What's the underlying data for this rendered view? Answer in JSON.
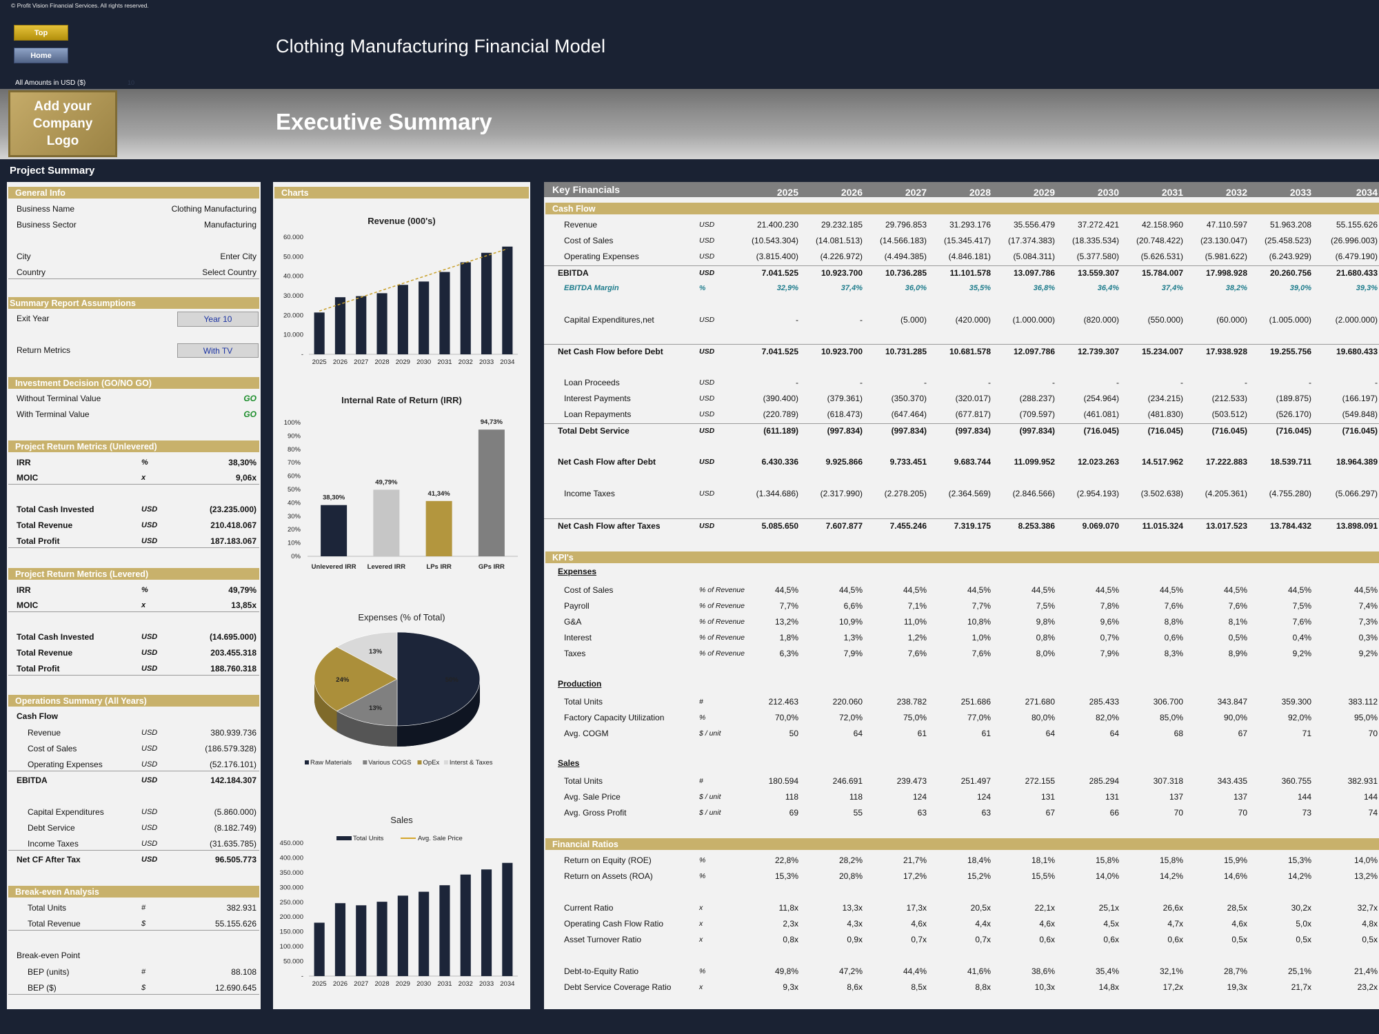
{
  "header": {
    "copyright": "© Profit Vision Financial Services. All rights reserved.",
    "top_btn": "Top",
    "home_btn": "Home",
    "app_title": "Clothing Manufacturing Financial Model",
    "amounts": "All Amounts in  USD ($)",
    "amounts_dim": "10",
    "logo": "Add your Company Logo",
    "section_title": "Executive Summary",
    "project_summary": "Project Summary"
  },
  "left": {
    "general": {
      "title": "General Info",
      "rows": [
        {
          "l": "Business Name",
          "v": "Clothing Manufacturing"
        },
        {
          "l": "Business Sector",
          "v": "Manufacturing"
        },
        {
          "l": "City",
          "v": "Enter City"
        },
        {
          "l": "Country",
          "v": "Select Country"
        }
      ]
    },
    "assumptions": {
      "title": "Summary  Report Assumptions",
      "exit_label": "Exit Year",
      "exit_value": "Year 10",
      "ret_label": "Return Metrics",
      "ret_value": "With TV"
    },
    "decision": {
      "title": "Investment Decision (GO/NO GO)",
      "rows": [
        {
          "l": "Without Terminal Value",
          "v": "GO"
        },
        {
          "l": "With Terminal Value",
          "v": "GO"
        }
      ]
    },
    "unlevered": {
      "title": "Project Return Metrics (Unlevered)",
      "rows": [
        {
          "l": "IRR",
          "u": "%",
          "v": "38,30%"
        },
        {
          "l": "MOIC",
          "u": "x",
          "v": "9,06x"
        },
        {
          "l": "Total Cash Invested",
          "u": "USD",
          "v": "(23.235.000)"
        },
        {
          "l": "Total Revenue",
          "u": "USD",
          "v": "210.418.067"
        },
        {
          "l": "Total Profit",
          "u": "USD",
          "v": "187.183.067"
        }
      ]
    },
    "levered": {
      "title": "Project Return Metrics (Levered)",
      "rows": [
        {
          "l": "IRR",
          "u": "%",
          "v": "49,79%"
        },
        {
          "l": "MOIC",
          "u": "x",
          "v": "13,85x"
        },
        {
          "l": "Total Cash Invested",
          "u": "USD",
          "v": "(14.695.000)"
        },
        {
          "l": "Total Revenue",
          "u": "USD",
          "v": "203.455.318"
        },
        {
          "l": "Total Profit",
          "u": "USD",
          "v": "188.760.318"
        }
      ]
    },
    "ops": {
      "title": "Operations Summary (All Years)",
      "cashflow": "Cash Flow",
      "rows": [
        {
          "l": "Revenue",
          "u": "USD",
          "v": "380.939.736"
        },
        {
          "l": "Cost of Sales",
          "u": "USD",
          "v": "(186.579.328)"
        },
        {
          "l": "Operating Expenses",
          "u": "USD",
          "v": "(52.176.101)"
        },
        {
          "l": "EBITDA",
          "u": "USD",
          "v": "142.184.307"
        },
        {
          "l": "Capital Expenditures",
          "u": "USD",
          "v": "(5.860.000)"
        },
        {
          "l": "Debt Service",
          "u": "USD",
          "v": "(8.182.749)"
        },
        {
          "l": "Income Taxes",
          "u": "USD",
          "v": "(31.635.785)"
        },
        {
          "l": "Net CF After Tax",
          "u": "USD",
          "v": "96.505.773"
        }
      ]
    },
    "breakeven": {
      "title": "Break-even Analysis",
      "point": "Break-even Point",
      "rows": [
        {
          "l": "Total Units",
          "u": "#",
          "v": "382.931"
        },
        {
          "l": "Total Revenue",
          "u": "$",
          "v": "55.155.626"
        },
        {
          "l": "BEP (units)",
          "u": "#",
          "v": "88.108"
        },
        {
          "l": "BEP ($)",
          "u": "$",
          "v": "12.690.645"
        }
      ]
    }
  },
  "charts_title": "Charts",
  "chart_data": [
    {
      "type": "bar",
      "title": "Revenue (000's)",
      "categories": [
        "2025",
        "2026",
        "2027",
        "2028",
        "2029",
        "2030",
        "2031",
        "2032",
        "2033",
        "2034"
      ],
      "values": [
        21400,
        29232,
        29797,
        31293,
        35556,
        37272,
        42159,
        47111,
        51963,
        55156
      ],
      "trendline": "linear",
      "ylim": [
        0,
        60000
      ],
      "yticks": [
        "-",
        "10.000",
        "20.000",
        "30.000",
        "40.000",
        "50.000",
        "60.000"
      ],
      "color": "#1c2539",
      "trend_color": "#c8a02a"
    },
    {
      "type": "bar",
      "title": "Internal Rate of Return (IRR)",
      "categories": [
        "Unlevered IRR",
        "Levered IRR",
        "LPs IRR",
        "GPs IRR"
      ],
      "values": [
        38.3,
        49.79,
        41.34,
        94.73
      ],
      "labels": [
        "38,30%",
        "49,79%",
        "41,34%",
        "94,73%"
      ],
      "colors": [
        "#1c2539",
        "#c6c6c6",
        "#b3963e",
        "#7f7f7f"
      ],
      "ylim": [
        0,
        100
      ],
      "yticks": [
        "0%",
        "10%",
        "20%",
        "30%",
        "40%",
        "50%",
        "60%",
        "70%",
        "80%",
        "90%",
        "100%"
      ]
    },
    {
      "type": "pie",
      "title": "Expenses (% of Total)",
      "labels": [
        "Raw Materials",
        "Various COGS",
        "OpEx",
        "Interst & Taxes"
      ],
      "values": [
        50,
        13,
        24,
        13
      ],
      "slice_labels": [
        "50%",
        "13%",
        "24%",
        "13%"
      ],
      "colors": [
        "#1c2539",
        "#808080",
        "#ab8f3a",
        "#d9d9d9"
      ]
    },
    {
      "type": "bar",
      "title": "Sales",
      "series": [
        {
          "name": "Total Units",
          "values": [
            180594,
            246691,
            239473,
            251497,
            272155,
            285294,
            307318,
            343435,
            360755,
            382931
          ]
        },
        {
          "name": "Avg. Sale Price",
          "values": [
            118,
            118,
            124,
            124,
            131,
            131,
            137,
            137,
            144,
            144
          ]
        }
      ],
      "categories": [
        "2025",
        "2026",
        "2027",
        "2028",
        "2029",
        "2030",
        "2031",
        "2032",
        "2033",
        "2034"
      ],
      "ylim": [
        0,
        450000
      ],
      "yticks": [
        "-",
        "50.000",
        "100.000",
        "150.000",
        "200.000",
        "250.000",
        "300.000",
        "350.000",
        "400.000",
        "450.000"
      ],
      "colors": [
        "#1c2539",
        "#d4a52a"
      ]
    }
  ],
  "kf": {
    "title": "Key Financials",
    "years": [
      "2025",
      "2026",
      "2027",
      "2028",
      "2029",
      "2030",
      "2031",
      "2032",
      "2033",
      "2034"
    ],
    "cashflow_title": "Cash Flow",
    "cashflow": [
      {
        "l": "Revenue",
        "u": "USD",
        "v": [
          "21.400.230",
          "29.232.185",
          "29.796.853",
          "31.293.176",
          "35.556.479",
          "37.272.421",
          "42.158.960",
          "47.110.597",
          "51.963.208",
          "55.155.626"
        ]
      },
      {
        "l": "Cost of Sales",
        "u": "USD",
        "v": [
          "(10.543.304)",
          "(14.081.513)",
          "(14.566.183)",
          "(15.345.417)",
          "(17.374.383)",
          "(18.335.534)",
          "(20.748.422)",
          "(23.130.047)",
          "(25.458.523)",
          "(26.996.003)"
        ]
      },
      {
        "l": "Operating Expenses",
        "u": "USD",
        "v": [
          "(3.815.400)",
          "(4.226.972)",
          "(4.494.385)",
          "(4.846.181)",
          "(5.084.311)",
          "(5.377.580)",
          "(5.626.531)",
          "(5.981.622)",
          "(6.243.929)",
          "(6.479.190)"
        ]
      },
      {
        "l": "EBITDA",
        "u": "USD",
        "v": [
          "7.041.525",
          "10.923.700",
          "10.736.285",
          "11.101.578",
          "13.097.786",
          "13.559.307",
          "15.784.007",
          "17.998.928",
          "20.260.756",
          "21.680.433"
        ]
      },
      {
        "l": "EBITDA Margin",
        "u": "%",
        "v": [
          "32,9%",
          "37,4%",
          "36,0%",
          "35,5%",
          "36,8%",
          "36,4%",
          "37,4%",
          "38,2%",
          "39,0%",
          "39,3%"
        ]
      },
      {
        "l": "Capital Expenditures,net",
        "u": "USD",
        "v": [
          "-",
          "-",
          "(5.000)",
          "(420.000)",
          "(1.000.000)",
          "(820.000)",
          "(550.000)",
          "(60.000)",
          "(1.005.000)",
          "(2.000.000)"
        ]
      },
      {
        "l": "Net Cash Flow before Debt",
        "u": "USD",
        "v": [
          "7.041.525",
          "10.923.700",
          "10.731.285",
          "10.681.578",
          "12.097.786",
          "12.739.307",
          "15.234.007",
          "17.938.928",
          "19.255.756",
          "19.680.433"
        ]
      },
      {
        "l": "Loan Proceeds",
        "u": "USD",
        "v": [
          "-",
          "-",
          "-",
          "-",
          "-",
          "-",
          "-",
          "-",
          "-",
          "-"
        ]
      },
      {
        "l": "Interest Payments",
        "u": "USD",
        "v": [
          "(390.400)",
          "(379.361)",
          "(350.370)",
          "(320.017)",
          "(288.237)",
          "(254.964)",
          "(234.215)",
          "(212.533)",
          "(189.875)",
          "(166.197)"
        ]
      },
      {
        "l": "Loan Repayments",
        "u": "USD",
        "v": [
          "(220.789)",
          "(618.473)",
          "(647.464)",
          "(677.817)",
          "(709.597)",
          "(461.081)",
          "(481.830)",
          "(503.512)",
          "(526.170)",
          "(549.848)"
        ]
      },
      {
        "l": "Total Debt Service",
        "u": "USD",
        "v": [
          "(611.189)",
          "(997.834)",
          "(997.834)",
          "(997.834)",
          "(997.834)",
          "(716.045)",
          "(716.045)",
          "(716.045)",
          "(716.045)",
          "(716.045)"
        ]
      },
      {
        "l": "Net Cash Flow after Debt",
        "u": "USD",
        "v": [
          "6.430.336",
          "9.925.866",
          "9.733.451",
          "9.683.744",
          "11.099.952",
          "12.023.263",
          "14.517.962",
          "17.222.883",
          "18.539.711",
          "18.964.389"
        ]
      },
      {
        "l": "Income Taxes",
        "u": "USD",
        "v": [
          "(1.344.686)",
          "(2.317.990)",
          "(2.278.205)",
          "(2.364.569)",
          "(2.846.566)",
          "(2.954.193)",
          "(3.502.638)",
          "(4.205.361)",
          "(4.755.280)",
          "(5.066.297)"
        ]
      },
      {
        "l": "Net Cash Flow after Taxes",
        "u": "USD",
        "v": [
          "5.085.650",
          "7.607.877",
          "7.455.246",
          "7.319.175",
          "8.253.386",
          "9.069.070",
          "11.015.324",
          "13.017.523",
          "13.784.432",
          "13.898.091"
        ]
      }
    ],
    "kpi_title": "KPI's",
    "expenses_title": "Expenses",
    "expenses": [
      {
        "l": "Cost of Sales",
        "u": "% of Revenue",
        "v": [
          "44,5%",
          "44,5%",
          "44,5%",
          "44,5%",
          "44,5%",
          "44,5%",
          "44,5%",
          "44,5%",
          "44,5%",
          "44,5%"
        ]
      },
      {
        "l": "Payroll",
        "u": "% of Revenue",
        "v": [
          "7,7%",
          "6,6%",
          "7,1%",
          "7,7%",
          "7,5%",
          "7,8%",
          "7,6%",
          "7,6%",
          "7,5%",
          "7,4%"
        ]
      },
      {
        "l": "G&A",
        "u": "% of Revenue",
        "v": [
          "13,2%",
          "10,9%",
          "11,0%",
          "10,8%",
          "9,8%",
          "9,6%",
          "8,8%",
          "8,1%",
          "7,6%",
          "7,3%"
        ]
      },
      {
        "l": "Interest",
        "u": "% of Revenue",
        "v": [
          "1,8%",
          "1,3%",
          "1,2%",
          "1,0%",
          "0,8%",
          "0,7%",
          "0,6%",
          "0,5%",
          "0,4%",
          "0,3%"
        ]
      },
      {
        "l": "Taxes",
        "u": "% of Revenue",
        "v": [
          "6,3%",
          "7,9%",
          "7,6%",
          "7,6%",
          "8,0%",
          "7,9%",
          "8,3%",
          "8,9%",
          "9,2%",
          "9,2%"
        ]
      }
    ],
    "production_title": "Production",
    "production": [
      {
        "l": "Total Units",
        "u": "#",
        "v": [
          "212.463",
          "220.060",
          "238.782",
          "251.686",
          "271.680",
          "285.433",
          "306.700",
          "343.847",
          "359.300",
          "383.112"
        ]
      },
      {
        "l": "Factory Capacity Utilization",
        "u": "%",
        "v": [
          "70,0%",
          "72,0%",
          "75,0%",
          "77,0%",
          "80,0%",
          "82,0%",
          "85,0%",
          "90,0%",
          "92,0%",
          "95,0%"
        ]
      },
      {
        "l": "Avg. COGM",
        "u": "$ / unit",
        "v": [
          "50",
          "64",
          "61",
          "61",
          "64",
          "64",
          "68",
          "67",
          "71",
          "70"
        ]
      }
    ],
    "sales_title": "Sales",
    "sales": [
      {
        "l": "Total Units",
        "u": "#",
        "v": [
          "180.594",
          "246.691",
          "239.473",
          "251.497",
          "272.155",
          "285.294",
          "307.318",
          "343.435",
          "360.755",
          "382.931"
        ]
      },
      {
        "l": "Avg. Sale Price",
        "u": "$ / unit",
        "v": [
          "118",
          "118",
          "124",
          "124",
          "131",
          "131",
          "137",
          "137",
          "144",
          "144"
        ]
      },
      {
        "l": "Avg. Gross Profit",
        "u": "$ / unit",
        "v": [
          "69",
          "55",
          "63",
          "63",
          "67",
          "66",
          "70",
          "70",
          "73",
          "74"
        ]
      }
    ],
    "ratios_title": "Financial Ratios",
    "ratios": [
      {
        "l": "Return on Equity (ROE)",
        "u": "%",
        "v": [
          "22,8%",
          "28,2%",
          "21,7%",
          "18,4%",
          "18,1%",
          "15,8%",
          "15,8%",
          "15,9%",
          "15,3%",
          "14,0%"
        ]
      },
      {
        "l": "Return on Assets (ROA)",
        "u": "%",
        "v": [
          "15,3%",
          "20,8%",
          "17,2%",
          "15,2%",
          "15,5%",
          "14,0%",
          "14,2%",
          "14,6%",
          "14,2%",
          "13,2%"
        ]
      },
      {
        "l": "Current Ratio",
        "u": "x",
        "v": [
          "11,8x",
          "13,3x",
          "17,3x",
          "20,5x",
          "22,1x",
          "25,1x",
          "26,6x",
          "28,5x",
          "30,2x",
          "32,7x"
        ]
      },
      {
        "l": "Operating Cash Flow Ratio",
        "u": "x",
        "v": [
          "2,3x",
          "4,3x",
          "4,6x",
          "4,4x",
          "4,6x",
          "4,5x",
          "4,7x",
          "4,6x",
          "5,0x",
          "4,8x"
        ]
      },
      {
        "l": "Asset Turnover Ratio",
        "u": "x",
        "v": [
          "0,8x",
          "0,9x",
          "0,7x",
          "0,7x",
          "0,6x",
          "0,6x",
          "0,6x",
          "0,5x",
          "0,5x",
          "0,5x"
        ]
      },
      {
        "l": "Debt-to-Equity Ratio",
        "u": "%",
        "v": [
          "49,8%",
          "47,2%",
          "44,4%",
          "41,6%",
          "38,6%",
          "35,4%",
          "32,1%",
          "28,7%",
          "25,1%",
          "21,4%"
        ]
      },
      {
        "l": "Debt Service Coverage Ratio",
        "u": "x",
        "v": [
          "9,3x",
          "8,6x",
          "8,5x",
          "8,8x",
          "10,3x",
          "14,8x",
          "17,2x",
          "19,3x",
          "21,7x",
          "23,2x"
        ]
      }
    ]
  }
}
